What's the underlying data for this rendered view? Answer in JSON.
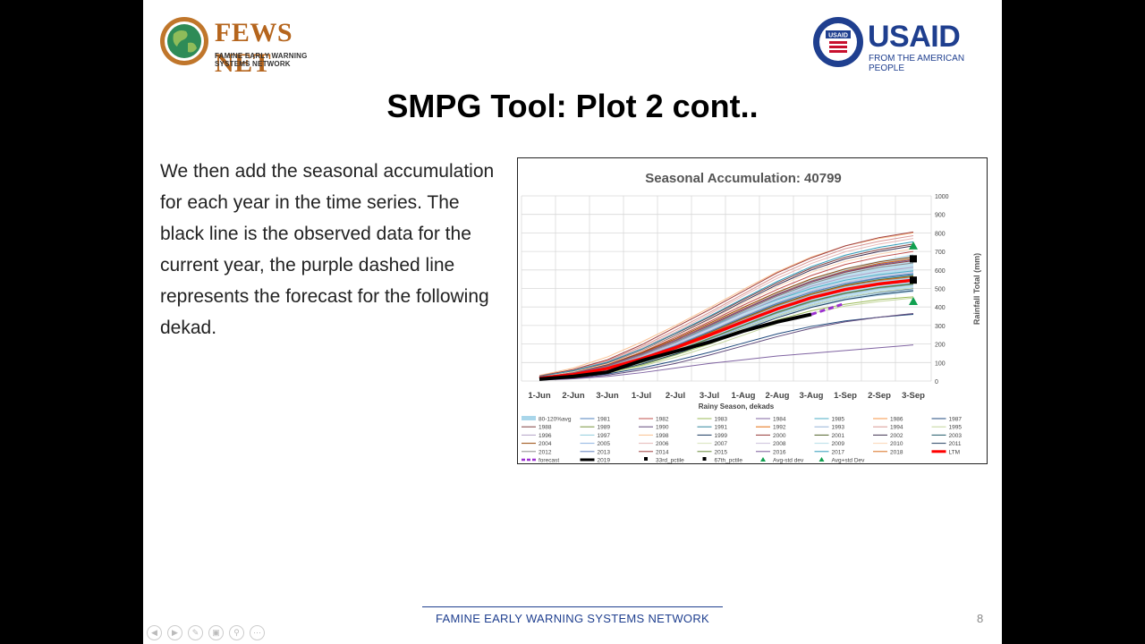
{
  "header": {
    "fews_logo_text": "FEWS NET",
    "fews_logo_subtitle": "FAMINE EARLY WARNING SYSTEMS NETWORK",
    "usaid_logo_text": "USAID",
    "usaid_tagline": "FROM THE AMERICAN PEOPLE",
    "usaid_seal_text": "USAID"
  },
  "slide": {
    "title": "SMPG Tool: Plot 2 cont..",
    "body": "We then add the seasonal accumulation for each year in the time series. The black line is the observed data for the current year, the purple dashed line represents the forecast for the following dekad.",
    "footer": "FAMINE EARLY WARNING SYSTEMS NETWORK",
    "page_number": "8"
  },
  "navbar": {
    "icons": [
      "prev-icon",
      "next-icon",
      "pen-icon",
      "slides-icon",
      "zoom-icon",
      "more-icon"
    ]
  },
  "chart_data": {
    "type": "line",
    "title": "Seasonal Accumulation: 40799",
    "xlabel": "Rainy Season, dekads",
    "ylabel": "Rainfall Total (mm)",
    "ylim": [
      0,
      1000
    ],
    "yticks": [
      0,
      100,
      200,
      300,
      400,
      500,
      600,
      700,
      800,
      900,
      1000
    ],
    "categories": [
      "1-Jun",
      "2-Jun",
      "3-Jun",
      "1-Jul",
      "2-Jul",
      "3-Jul",
      "1-Aug",
      "2-Aug",
      "3-Aug",
      "1-Sep",
      "2-Sep",
      "3-Sep"
    ],
    "grid": true,
    "legend_position": "bottom",
    "band": {
      "name": "80-120%avg",
      "color": "#a9d6ea",
      "lower": [
        10,
        25,
        50,
        95,
        145,
        205,
        275,
        345,
        395,
        435,
        460,
        480
      ],
      "upper": [
        18,
        40,
        75,
        135,
        210,
        295,
        390,
        480,
        555,
        610,
        650,
        685
      ]
    },
    "year_series": [
      {
        "name": "1981",
        "color": "#4f81bd",
        "values": [
          15,
          30,
          60,
          115,
          175,
          245,
          320,
          390,
          450,
          490,
          520,
          540
        ]
      },
      {
        "name": "1982",
        "color": "#c0504d",
        "values": [
          22,
          50,
          90,
          155,
          235,
          320,
          410,
          495,
          570,
          630,
          670,
          700
        ]
      },
      {
        "name": "1983",
        "color": "#9bbb59",
        "values": [
          10,
          22,
          45,
          85,
          140,
          200,
          265,
          330,
          380,
          415,
          440,
          455
        ]
      },
      {
        "name": "1984",
        "color": "#8064a2",
        "values": [
          5,
          12,
          25,
          45,
          70,
          95,
          115,
          135,
          150,
          165,
          180,
          195
        ]
      },
      {
        "name": "1985",
        "color": "#4bacc6",
        "values": [
          18,
          40,
          80,
          140,
          210,
          290,
          370,
          440,
          500,
          545,
          575,
          595
        ]
      },
      {
        "name": "1986",
        "color": "#f79646",
        "values": [
          12,
          28,
          58,
          108,
          170,
          240,
          315,
          385,
          445,
          490,
          520,
          540
        ]
      },
      {
        "name": "1987",
        "color": "#1f497d",
        "values": [
          8,
          18,
          38,
          70,
          110,
          155,
          205,
          255,
          295,
          325,
          345,
          360
        ]
      },
      {
        "name": "1988",
        "color": "#7f3f3f",
        "values": [
          25,
          55,
          100,
          170,
          255,
          345,
          440,
          530,
          610,
          670,
          710,
          740
        ]
      },
      {
        "name": "1989",
        "color": "#77933c",
        "values": [
          14,
          32,
          65,
          120,
          185,
          260,
          340,
          410,
          470,
          515,
          545,
          565
        ]
      },
      {
        "name": "1990",
        "color": "#604a7b",
        "values": [
          6,
          15,
          32,
          60,
          95,
          140,
          190,
          240,
          285,
          320,
          345,
          365
        ]
      },
      {
        "name": "1991",
        "color": "#31859c",
        "values": [
          16,
          36,
          70,
          128,
          195,
          270,
          350,
          420,
          480,
          525,
          555,
          575
        ]
      },
      {
        "name": "1992",
        "color": "#e46c0a",
        "values": [
          20,
          45,
          85,
          148,
          222,
          305,
          390,
          470,
          540,
          595,
          635,
          660
        ]
      },
      {
        "name": "1993",
        "color": "#95b3d7",
        "values": [
          11,
          25,
          52,
          98,
          155,
          222,
          295,
          365,
          425,
          470,
          500,
          520
        ]
      },
      {
        "name": "1994",
        "color": "#d99694",
        "values": [
          28,
          60,
          110,
          185,
          275,
          370,
          470,
          570,
          650,
          715,
          755,
          785
        ]
      },
      {
        "name": "1995",
        "color": "#c3d69b",
        "values": [
          9,
          20,
          42,
          80,
          128,
          185,
          248,
          312,
          365,
          405,
          430,
          448
        ]
      },
      {
        "name": "1996",
        "color": "#b2a2c7",
        "values": [
          17,
          38,
          75,
          135,
          205,
          285,
          368,
          445,
          512,
          560,
          592,
          615
        ]
      },
      {
        "name": "1997",
        "color": "#92cddc",
        "values": [
          13,
          30,
          62,
          115,
          180,
          255,
          333,
          405,
          465,
          510,
          540,
          560
        ]
      },
      {
        "name": "1998",
        "color": "#fac08f",
        "values": [
          30,
          70,
          130,
          210,
          300,
          395,
          495,
          590,
          670,
          730,
          770,
          800
        ]
      },
      {
        "name": "1999",
        "color": "#17375e",
        "values": [
          10,
          24,
          50,
          95,
          150,
          215,
          285,
          352,
          410,
          452,
          480,
          500
        ]
      },
      {
        "name": "2000",
        "color": "#953735",
        "values": [
          19,
          42,
          82,
          145,
          218,
          300,
          385,
          465,
          535,
          588,
          625,
          650
        ]
      },
      {
        "name": "2001",
        "color": "#4f6228",
        "values": [
          15,
          33,
          67,
          122,
          188,
          262,
          340,
          412,
          472,
          518,
          548,
          568
        ]
      },
      {
        "name": "2002",
        "color": "#3f3151",
        "values": [
          24,
          52,
          95,
          162,
          245,
          335,
          430,
          520,
          600,
          660,
          700,
          730
        ]
      },
      {
        "name": "2003",
        "color": "#205867",
        "values": [
          12,
          27,
          55,
          103,
          162,
          230,
          302,
          372,
          432,
          476,
          506,
          526
        ]
      },
      {
        "name": "2004",
        "color": "#974806",
        "values": [
          21,
          47,
          88,
          152,
          228,
          312,
          398,
          480,
          552,
          606,
          644,
          670
        ]
      },
      {
        "name": "2005",
        "color": "#8db3e2",
        "values": [
          14,
          31,
          63,
          117,
          182,
          256,
          334,
          406,
          466,
          512,
          542,
          562
        ]
      },
      {
        "name": "2006",
        "color": "#e6b8b7",
        "values": [
          26,
          58,
          105,
          178,
          265,
          360,
          460,
          555,
          635,
          698,
          740,
          770
        ]
      },
      {
        "name": "2007",
        "color": "#d7e4bc",
        "values": [
          11,
          24,
          50,
          94,
          150,
          214,
          284,
          352,
          410,
          452,
          482,
          502
        ]
      },
      {
        "name": "2008",
        "color": "#ccc1da",
        "values": [
          16,
          35,
          70,
          128,
          196,
          272,
          352,
          426,
          488,
          534,
          566,
          588
        ]
      },
      {
        "name": "2009",
        "color": "#b7dee8",
        "values": [
          13,
          29,
          59,
          110,
          172,
          244,
          320,
          392,
          452,
          496,
          526,
          546
        ]
      },
      {
        "name": "2010",
        "color": "#fbd5b5",
        "values": [
          23,
          50,
          93,
          160,
          242,
          330,
          422,
          510,
          588,
          646,
          686,
          714
        ]
      },
      {
        "name": "2011",
        "color": "#244061",
        "values": [
          10,
          23,
          48,
          91,
          145,
          208,
          276,
          342,
          398,
          440,
          468,
          488
        ]
      },
      {
        "name": "2012",
        "color": "#8c8c8c",
        "values": [
          18,
          40,
          78,
          140,
          212,
          294,
          378,
          458,
          526,
          578,
          614,
          638
        ]
      },
      {
        "name": "2013",
        "color": "#5f7fbf",
        "values": [
          15,
          34,
          68,
          124,
          191,
          266,
          345,
          418,
          480,
          526,
          558,
          580
        ]
      },
      {
        "name": "2014",
        "color": "#a04040",
        "values": [
          27,
          62,
          115,
          195,
          290,
          385,
          485,
          585,
          665,
          730,
          775,
          805
        ]
      },
      {
        "name": "2015",
        "color": "#6a8c3a",
        "values": [
          12,
          26,
          54,
          101,
          160,
          228,
          300,
          370,
          430,
          474,
          504,
          524
        ]
      },
      {
        "name": "2016",
        "color": "#7a5b9a",
        "values": [
          20,
          44,
          84,
          146,
          220,
          303,
          388,
          468,
          538,
          592,
          630,
          656
        ]
      },
      {
        "name": "2017",
        "color": "#2e9ab8",
        "values": [
          25,
          56,
          102,
          172,
          258,
          350,
          446,
          538,
          618,
          680,
          722,
          752
        ]
      },
      {
        "name": "2018",
        "color": "#d97020",
        "values": [
          14,
          32,
          64,
          118,
          184,
          258,
          336,
          408,
          468,
          514,
          544,
          564
        ]
      }
    ],
    "ltm": {
      "name": "LTM",
      "color": "#ff0000",
      "values": [
        16,
        35,
        68,
        120,
        180,
        248,
        320,
        390,
        450,
        495,
        525,
        545
      ]
    },
    "current": {
      "name": "2019",
      "color": "#000000",
      "values": [
        10,
        25,
        48,
        110,
        160,
        210,
        270,
        320,
        360
      ]
    },
    "forecast": {
      "name": "forecast",
      "color": "#9b30d0",
      "x": [
        "3-Aug",
        "1-Sep"
      ],
      "values": [
        360,
        420
      ]
    },
    "markers": [
      {
        "name": "33rd_pctile",
        "color": "#000000",
        "shape": "square",
        "x": "3-Sep",
        "value": 545
      },
      {
        "name": "67th_pctile",
        "color": "#000000",
        "shape": "square",
        "x": "3-Sep",
        "value": 660
      },
      {
        "name": "Avg-std dev",
        "color": "#10a050",
        "shape": "triangle",
        "x": "3-Sep",
        "value": 430
      },
      {
        "name": "Avg+std Dev",
        "color": "#10a050",
        "shape": "triangle",
        "x": "3-Sep",
        "value": 730
      }
    ]
  }
}
